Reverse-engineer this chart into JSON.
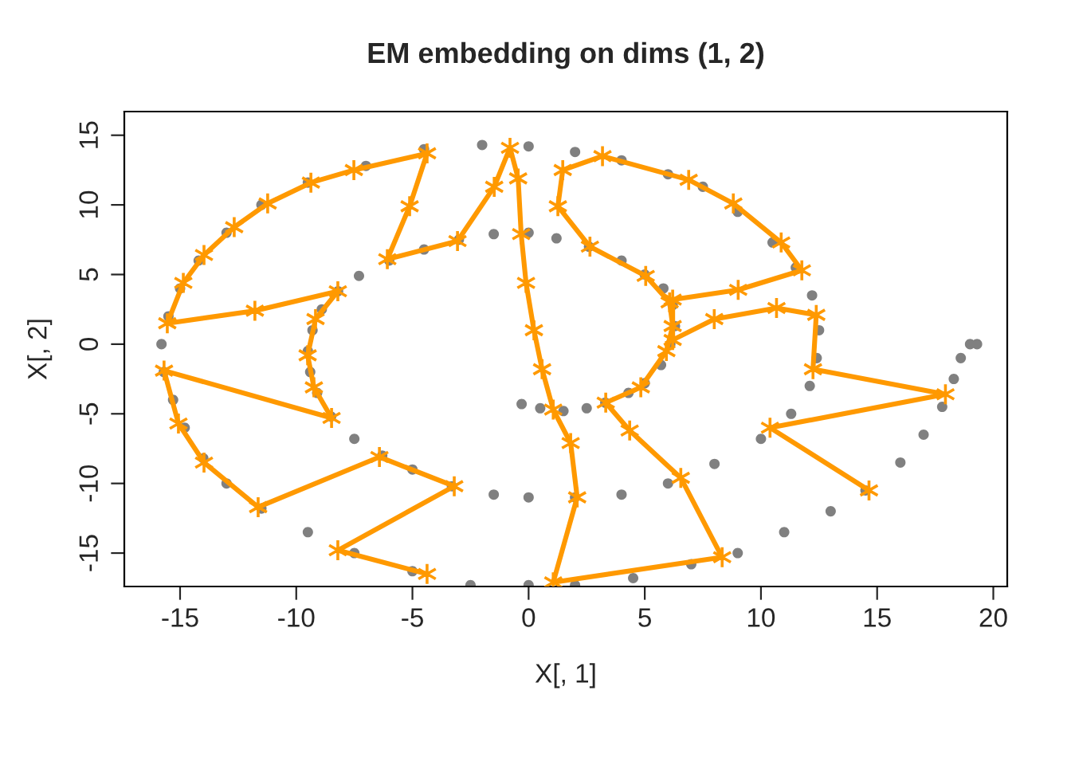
{
  "chart_data": {
    "type": "scatter",
    "title": "EM embedding on dims (1, 2)",
    "xlabel": "X[, 1]",
    "ylabel": "X[, 2]",
    "xlim": [
      -17.4,
      20.6
    ],
    "ylim": [
      -17.4,
      16.7
    ],
    "xticks": [
      -15,
      -10,
      -5,
      0,
      5,
      10,
      15,
      20
    ],
    "yticks": [
      -15,
      -10,
      -5,
      0,
      5,
      10,
      15
    ],
    "grid": false,
    "legend": false,
    "series": [
      {
        "color": "#808080",
        "marker": "circle",
        "x": [
          -0.3,
          0.5,
          1.5,
          2.5,
          3.3,
          4.3,
          5.0,
          5.7,
          6.1,
          6.3,
          6.2,
          5.8,
          5.0,
          4.0,
          2.6,
          1.2,
          0,
          -1.5,
          -3,
          -4.5,
          -6,
          -7.3,
          -8.2,
          -8.9,
          -9.3,
          -9.5,
          -9.4,
          -9.1,
          -8.5,
          -7.5,
          -6.3,
          -5,
          -3.3,
          -1.5,
          0,
          2,
          4,
          6,
          8,
          10,
          11.3,
          12.1,
          12.4,
          12.5,
          12.2,
          11.5,
          10.5,
          9,
          7.5,
          6,
          4,
          2,
          0,
          -2,
          -4.5,
          -7,
          -9.5,
          -11.5,
          -13,
          -14.2,
          -15,
          -15.5,
          -15.8,
          -15.7,
          -15.3,
          -14.8,
          -14,
          -13,
          -11.5,
          -9.5,
          -7.5,
          -5,
          -2.5,
          0,
          2,
          4.5,
          7,
          9,
          11,
          13,
          14.5,
          16,
          17,
          17.8,
          18.3,
          18.6,
          19,
          19.3
        ],
        "values": [
          -4.3,
          -4.6,
          -4.8,
          -4.6,
          -4.2,
          -3.5,
          -2.8,
          -1.5,
          0,
          1.3,
          2.8,
          4.0,
          5.0,
          6.0,
          7.0,
          7.6,
          8.0,
          7.9,
          7.5,
          6.8,
          6.0,
          4.9,
          3.8,
          2.5,
          1,
          -0.5,
          -2,
          -3.5,
          -5.2,
          -6.8,
          -8,
          -9,
          -10.2,
          -10.8,
          -11,
          -11,
          -10.8,
          -10,
          -8.6,
          -6.8,
          -5,
          -3,
          -1,
          1,
          3.5,
          5.5,
          7.3,
          9.5,
          11.3,
          12.2,
          13.2,
          13.8,
          14.2,
          14.3,
          14,
          12.8,
          11.6,
          10,
          8,
          6,
          4,
          2,
          0,
          -2,
          -4,
          -6,
          -8.2,
          -10,
          -11.8,
          -13.5,
          -15,
          -16.3,
          -17.3,
          -17.3,
          -17.3,
          -16.8,
          -15.8,
          -15,
          -13.5,
          -12,
          -10.5,
          -8.5,
          -6.5,
          -4.5,
          -2.5,
          -1,
          0,
          0
        ]
      },
      {
        "type": "line",
        "color": "#ff9900",
        "marker": "cross",
        "line_style": "solid",
        "x": [
          -4.37,
          -8.21,
          -3.2,
          -6.42,
          -11.64,
          -13.97,
          -15.07,
          -15.69,
          -8.48,
          -9.24,
          -9.51,
          -9.17,
          -8.21,
          -11.78,
          -15.55,
          -14.86,
          -13.97,
          -12.67,
          -11.23,
          -9.37,
          -7.52,
          -4.37,
          -5.12,
          -6.08,
          -3.06,
          -1.48,
          -0.8,
          -0.45,
          -0.32,
          -0.11,
          0.23,
          0.58,
          1.06,
          1.81,
          2.09,
          1.06,
          8.33,
          6.55,
          4.35,
          3.32,
          4.83,
          5.93,
          6.2,
          6.07,
          5.04,
          2.64,
          1.26,
          1.47,
          3.18,
          6.89,
          8.81,
          10.87,
          11.76,
          9.02,
          6.2,
          6.2,
          7.99,
          10.67,
          12.38,
          12.24,
          17.94,
          10.39,
          14.65
        ],
        "values": [
          -16.5,
          -14.8,
          -10.2,
          -8.1,
          -11.7,
          -8.5,
          -5.7,
          -1.9,
          -5.3,
          -3.1,
          -0.8,
          1.8,
          3.8,
          2.4,
          1.5,
          4.4,
          6.4,
          8.4,
          10.1,
          11.6,
          12.5,
          13.7,
          9.9,
          6.1,
          7.4,
          11.3,
          14.1,
          11.9,
          7.9,
          4.4,
          1.0,
          -1.8,
          -4.7,
          -7.1,
          -11.0,
          -17.1,
          -15.3,
          -9.6,
          -6.2,
          -4.2,
          -3.1,
          -0.5,
          1.3,
          3.0,
          4.9,
          7.0,
          9.9,
          12.5,
          13.5,
          11.8,
          10.1,
          7.3,
          5.3,
          3.9,
          3.2,
          0.3,
          1.8,
          2.6,
          2.1,
          -1.8,
          -3.6,
          -6.0,
          -10.5
        ]
      }
    ]
  }
}
